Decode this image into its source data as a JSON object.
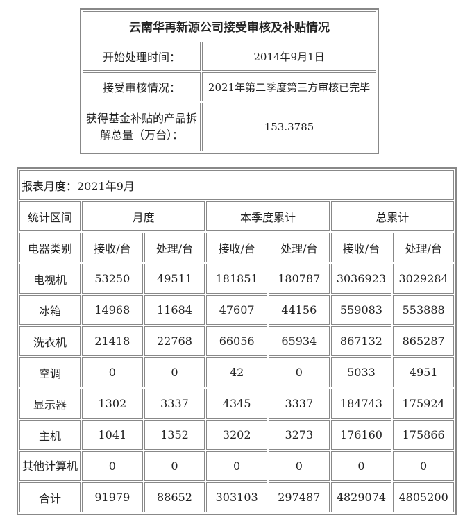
{
  "summary": {
    "title": "云南华再新源公司接受审核及补贴情况",
    "rows": [
      {
        "label": "开始处理时间：",
        "value": "2014年9月1日"
      },
      {
        "label": "接受审核情况：",
        "value": "2021年第二季度第三方审核已完毕"
      },
      {
        "label": "获得基金补贴的产品拆解总量（万台）：",
        "value": "153.3785"
      }
    ]
  },
  "report": {
    "month_label": "报表月度：2021年9月",
    "period_header": "统计区间",
    "periods": [
      "月度",
      "本季度累计",
      "总累计"
    ],
    "category_header": "电器类别",
    "sub_headers": [
      "接收/台",
      "处理/台",
      "接收/台",
      "处理/台",
      "接收/台",
      "处理/台"
    ],
    "rows": [
      {
        "name": "电视机",
        "values": [
          "53250",
          "49511",
          "181851",
          "180787",
          "3036923",
          "3029284"
        ]
      },
      {
        "name": "冰箱",
        "values": [
          "14968",
          "11684",
          "47607",
          "44156",
          "559083",
          "553888"
        ]
      },
      {
        "name": "洗衣机",
        "values": [
          "21418",
          "22768",
          "66056",
          "65934",
          "867132",
          "865287"
        ]
      },
      {
        "name": "空调",
        "values": [
          "0",
          "0",
          "42",
          "0",
          "5033",
          "4951"
        ]
      },
      {
        "name": "显示器",
        "values": [
          "1302",
          "3337",
          "4345",
          "3337",
          "184743",
          "175924"
        ]
      },
      {
        "name": "主机",
        "values": [
          "1041",
          "1352",
          "3202",
          "3273",
          "176160",
          "175866"
        ]
      },
      {
        "name": "其他计算机",
        "values": [
          "0",
          "0",
          "0",
          "0",
          "0",
          "0"
        ]
      },
      {
        "name": "合计",
        "values": [
          "91979",
          "88652",
          "303103",
          "297487",
          "4829074",
          "4805200"
        ]
      }
    ]
  }
}
